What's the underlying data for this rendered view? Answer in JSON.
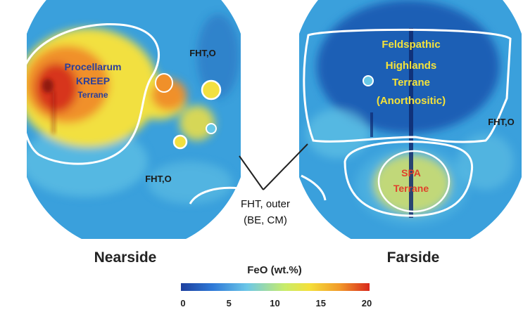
{
  "hemispheres": {
    "nearside": {
      "caption": "Nearside",
      "terranes": {
        "procellarum": [
          "Procellarum",
          "KREEP",
          "Terrane"
        ],
        "fht_o_upper": "FHT,O",
        "fht_o_lower": "FHT,O"
      }
    },
    "farside": {
      "caption": "Farside",
      "terranes": {
        "highlands": [
          "Feldspathic",
          "Highlands",
          "Terrane",
          "(Anorthositic)"
        ],
        "spa": [
          "SPA",
          "Terrane"
        ],
        "fht_o_right": "FHT,O"
      }
    }
  },
  "callout": {
    "lines": [
      "FHT, outer",
      "(BE, CM)"
    ]
  },
  "colorbar": {
    "title": "FeO (wt.%)",
    "ticks": [
      "0",
      "5",
      "10",
      "15",
      "20"
    ],
    "min": 0,
    "max": 20,
    "colors": [
      "#1d3f9e",
      "#2f7ad8",
      "#6cc7e8",
      "#c8ec6a",
      "#f4e03a",
      "#f29a2a",
      "#d8281c"
    ]
  },
  "colors": {
    "base_blue": "#3aa0dc",
    "deep_blue": "#1f5fb5",
    "cyan": "#68c8e6",
    "yellow": "#f2e040",
    "orange": "#f0902a",
    "red": "#d42a1c",
    "boundary": "#ffffff",
    "label_blue": "#2b3f9a",
    "label_yellow": "#f4e23a",
    "label_red": "#e0402a"
  }
}
